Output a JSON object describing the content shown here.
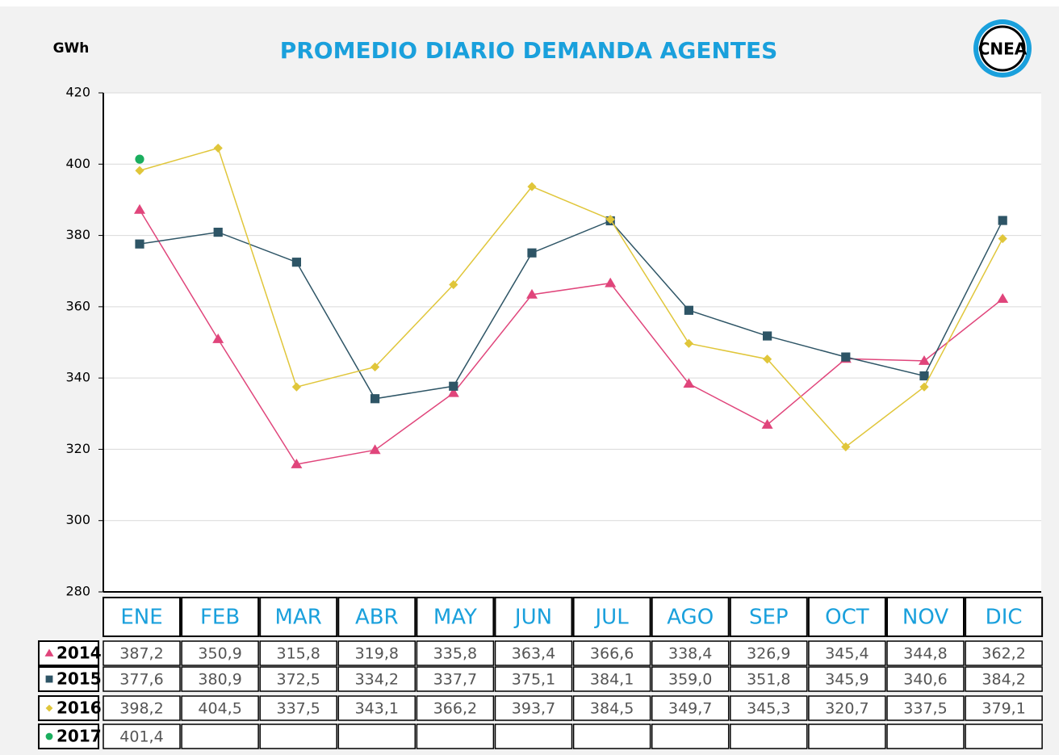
{
  "chart_data": {
    "type": "line",
    "title": "PROMEDIO DIARIO DEMANDA AGENTES",
    "y_label": "GWh",
    "logo": "CNEA",
    "categories": [
      "ENE",
      "FEB",
      "MAR",
      "ABR",
      "MAY",
      "JUN",
      "JUL",
      "AGO",
      "SEP",
      "OCT",
      "NOV",
      "DIC"
    ],
    "ylim": [
      280,
      420
    ],
    "yticks": [
      280,
      300,
      320,
      340,
      360,
      380,
      400,
      420
    ],
    "grid": true,
    "series": [
      {
        "name": "2014",
        "color": "#e0457b",
        "marker": "triangle",
        "values": [
          387.2,
          350.9,
          315.8,
          319.8,
          335.8,
          363.4,
          366.6,
          338.4,
          326.9,
          345.4,
          344.8,
          362.2
        ],
        "value_labels": [
          "387,2",
          "350,9",
          "315,8",
          "319,8",
          "335,8",
          "363,4",
          "366,6",
          "338,4",
          "326,9",
          "345,4",
          "344,8",
          "362,2"
        ]
      },
      {
        "name": "2015",
        "color": "#2e5566",
        "marker": "square",
        "values": [
          377.6,
          380.9,
          372.5,
          334.2,
          337.7,
          375.1,
          384.1,
          359.0,
          351.8,
          345.9,
          340.6,
          384.2
        ],
        "value_labels": [
          "377,6",
          "380,9",
          "372,5",
          "334,2",
          "337,7",
          "375,1",
          "384,1",
          "359,0",
          "351,8",
          "345,9",
          "340,6",
          "384,2"
        ]
      },
      {
        "name": "2016",
        "color": "#e0c63a",
        "marker": "diamond",
        "values": [
          398.2,
          404.5,
          337.5,
          343.1,
          366.2,
          393.7,
          384.5,
          349.7,
          345.3,
          320.7,
          337.5,
          379.1
        ],
        "value_labels": [
          "398,2",
          "404,5",
          "337,5",
          "343,1",
          "366,2",
          "393,7",
          "384,5",
          "349,7",
          "345,3",
          "320,7",
          "337,5",
          "379,1"
        ]
      },
      {
        "name": "2017",
        "color": "#1aae5e",
        "marker": "circle",
        "values": [
          401.4,
          null,
          null,
          null,
          null,
          null,
          null,
          null,
          null,
          null,
          null,
          null
        ],
        "value_labels": [
          "401,4",
          null,
          null,
          null,
          null,
          null,
          null,
          null,
          null,
          null,
          null,
          null
        ]
      }
    ]
  }
}
